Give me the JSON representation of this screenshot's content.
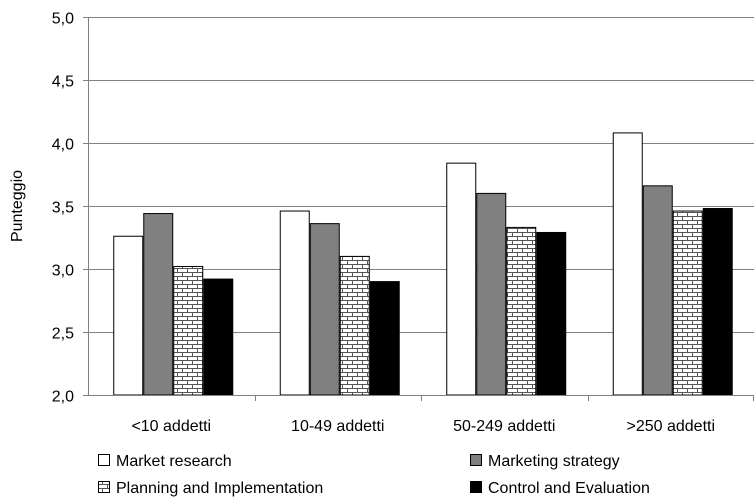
{
  "chart_data": {
    "type": "bar",
    "title": "",
    "xlabel": "",
    "ylabel": "Punteggio",
    "ylim": [
      2.0,
      5.0
    ],
    "yticks": [
      "2,0",
      "2,5",
      "3,0",
      "3,5",
      "4,0",
      "4,5",
      "5,0"
    ],
    "ytick_values": [
      2.0,
      2.5,
      3.0,
      3.5,
      4.0,
      4.5,
      5.0
    ],
    "grid": true,
    "legend_position": "bottom",
    "categories": [
      "<10 addetti",
      "10-49 addetti",
      "50-249 addetti",
      ">250 addetti"
    ],
    "series": [
      {
        "name": "Market research",
        "values": [
          3.26,
          3.46,
          3.84,
          4.08
        ],
        "fill": "#ffffff",
        "pattern": "solid"
      },
      {
        "name": "Marketing strategy",
        "values": [
          3.44,
          3.36,
          3.6,
          3.66
        ],
        "fill": "#808080",
        "pattern": "solid"
      },
      {
        "name": "Planning and Implementation",
        "values": [
          3.02,
          3.1,
          3.33,
          3.46
        ],
        "fill": "#ffffff",
        "pattern": "brick"
      },
      {
        "name": "Control and Evaluation",
        "values": [
          2.92,
          2.9,
          3.29,
          3.48
        ],
        "fill": "#000000",
        "pattern": "solid"
      }
    ]
  }
}
